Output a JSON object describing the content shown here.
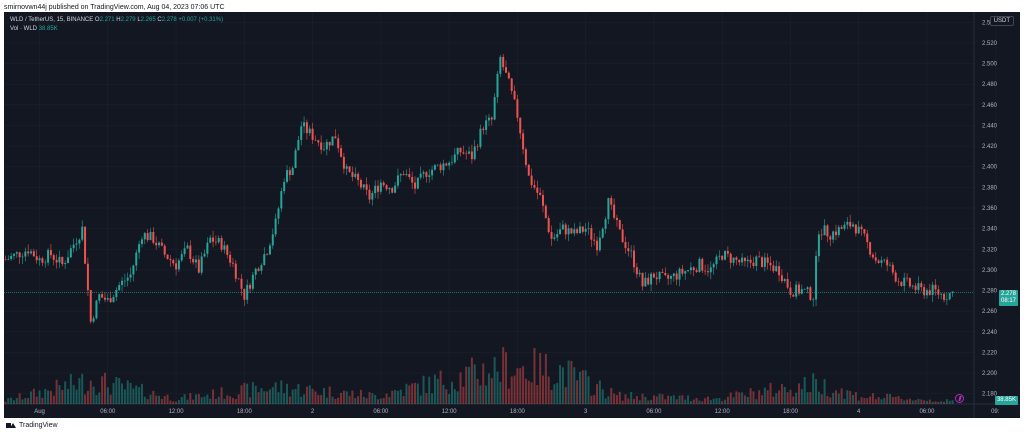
{
  "header": {
    "text": "smirnovwn44j published on TradingView.com, Aug 04, 2023 07:06 UTC"
  },
  "legend": {
    "symbol": "WLD / TetherUS, 15, BINANCE",
    "o_label": "O",
    "o_value": "2.271",
    "h_label": "H",
    "h_value": "2.279",
    "l_label": "L",
    "l_value": "2.265",
    "c_label": "C",
    "c_value": "2.278",
    "change": "+0.007 (+0.31%)",
    "vol_label": "Vol · WLD",
    "vol_value": "38.85K"
  },
  "currency": "USDT",
  "price_tag": {
    "price": "2.278",
    "countdown": "08:17"
  },
  "volume_tag": "38.85K",
  "footer": {
    "brand": "TradingView"
  },
  "colors": {
    "background": "#131722",
    "up": "#26a69a",
    "down": "#ef5350",
    "grid": "#1f232e",
    "axis_text": "#b2b5be"
  },
  "chart_data": {
    "type": "candlestick",
    "symbol": "WLD / TetherUS",
    "interval": "15",
    "exchange": "BINANCE",
    "ylim": [
      2.17,
      2.55
    ],
    "y_ticks": [
      "2.540",
      "2.520",
      "2.500",
      "2.480",
      "2.460",
      "2.440",
      "2.420",
      "2.400",
      "2.380",
      "2.360",
      "2.340",
      "2.320",
      "2.300",
      "2.280",
      "2.260",
      "2.240",
      "2.220",
      "2.200",
      "2.180"
    ],
    "x_ticks": [
      "Aug",
      "06:00",
      "12:00",
      "18:00",
      "2",
      "06:00",
      "12:00",
      "18:00",
      "3",
      "06:00",
      "12:00",
      "18:00",
      "4",
      "06:00",
      "09:"
    ],
    "last_price": 2.278,
    "close_path": [
      [
        0,
        2.31
      ],
      [
        4,
        2.315
      ],
      [
        8,
        2.32
      ],
      [
        12,
        2.31
      ],
      [
        16,
        2.315
      ],
      [
        20,
        2.305
      ],
      [
        24,
        2.325
      ],
      [
        27,
        2.34
      ],
      [
        30,
        2.25
      ],
      [
        33,
        2.275
      ],
      [
        36,
        2.27
      ],
      [
        40,
        2.285
      ],
      [
        44,
        2.295
      ],
      [
        48,
        2.335
      ],
      [
        52,
        2.33
      ],
      [
        56,
        2.315
      ],
      [
        60,
        2.305
      ],
      [
        64,
        2.32
      ],
      [
        68,
        2.3
      ],
      [
        72,
        2.33
      ],
      [
        76,
        2.325
      ],
      [
        80,
        2.305
      ],
      [
        84,
        2.275
      ],
      [
        88,
        2.3
      ],
      [
        92,
        2.32
      ],
      [
        95,
        2.345
      ],
      [
        98,
        2.39
      ],
      [
        101,
        2.4
      ],
      [
        104,
        2.44
      ],
      [
        108,
        2.43
      ],
      [
        112,
        2.42
      ],
      [
        116,
        2.43
      ],
      [
        120,
        2.395
      ],
      [
        124,
        2.385
      ],
      [
        128,
        2.37
      ],
      [
        132,
        2.385
      ],
      [
        136,
        2.38
      ],
      [
        140,
        2.395
      ],
      [
        144,
        2.38
      ],
      [
        148,
        2.395
      ],
      [
        152,
        2.4
      ],
      [
        156,
        2.405
      ],
      [
        160,
        2.415
      ],
      [
        164,
        2.41
      ],
      [
        168,
        2.44
      ],
      [
        171,
        2.445
      ],
      [
        174,
        2.505
      ],
      [
        177,
        2.48
      ],
      [
        180,
        2.45
      ],
      [
        184,
        2.39
      ],
      [
        188,
        2.37
      ],
      [
        192,
        2.33
      ],
      [
        196,
        2.34
      ],
      [
        200,
        2.335
      ],
      [
        204,
        2.34
      ],
      [
        208,
        2.325
      ],
      [
        212,
        2.365
      ],
      [
        216,
        2.335
      ],
      [
        220,
        2.315
      ],
      [
        224,
        2.285
      ],
      [
        228,
        2.295
      ],
      [
        232,
        2.29
      ],
      [
        236,
        2.295
      ],
      [
        240,
        2.3
      ],
      [
        244,
        2.305
      ],
      [
        248,
        2.3
      ],
      [
        252,
        2.315
      ],
      [
        256,
        2.31
      ],
      [
        260,
        2.305
      ],
      [
        264,
        2.31
      ],
      [
        268,
        2.305
      ],
      [
        272,
        2.3
      ],
      [
        276,
        2.28
      ],
      [
        280,
        2.28
      ],
      [
        284,
        2.275
      ],
      [
        286,
        2.34
      ],
      [
        290,
        2.335
      ],
      [
        294,
        2.34
      ],
      [
        298,
        2.345
      ],
      [
        302,
        2.33
      ],
      [
        306,
        2.31
      ],
      [
        310,
        2.305
      ],
      [
        314,
        2.29
      ],
      [
        318,
        2.285
      ],
      [
        322,
        2.28
      ],
      [
        326,
        2.28
      ],
      [
        330,
        2.275
      ],
      [
        333,
        2.278
      ]
    ],
    "volume_shape": [
      [
        0,
        0.05
      ],
      [
        30,
        0.35
      ],
      [
        60,
        0.08
      ],
      [
        95,
        0.25
      ],
      [
        130,
        0.12
      ],
      [
        160,
        0.4
      ],
      [
        175,
        0.55
      ],
      [
        195,
        0.5
      ],
      [
        215,
        0.12
      ],
      [
        250,
        0.08
      ],
      [
        285,
        0.3
      ],
      [
        300,
        0.12
      ],
      [
        333,
        0.04
      ]
    ],
    "candle_count": 334
  }
}
